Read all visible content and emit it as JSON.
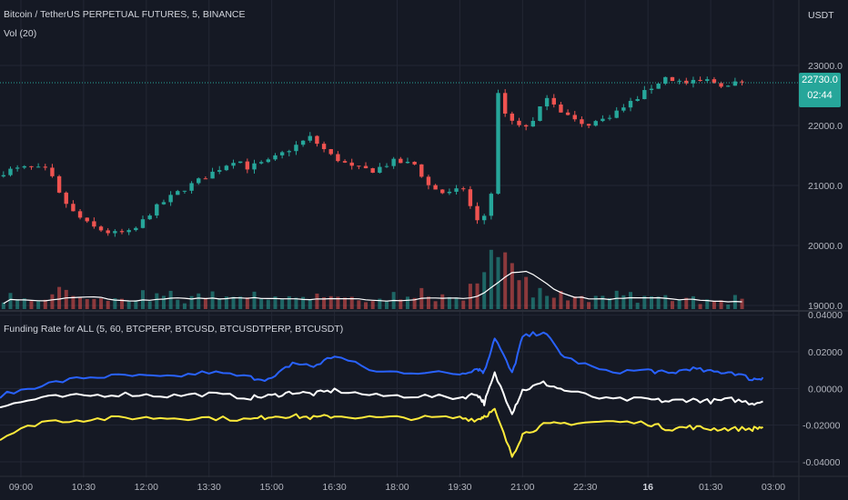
{
  "main_pane": {
    "title": "Bitcoin / TetherUS PERPETUAL FUTURES, 5, BINANCE",
    "volume_label": "Vol (20)",
    "currency": "USDT",
    "price_label": "22730.0",
    "countdown": "02:44",
    "y_ticks": [
      "23000.0",
      "22000.0",
      "21000.0",
      "20000.0",
      "19000.0"
    ]
  },
  "indicator_pane": {
    "title": "Funding Rate for ALL (5, 60, BTCPERP, BTCUSD, BTCUSDTPERP, BTCUSDT)",
    "y_ticks": [
      "0.04000",
      "0.02000",
      "0.00000",
      "-0.02000",
      "-0.04000"
    ]
  },
  "x_ticks": [
    "09:00",
    "10:30",
    "12:00",
    "13:30",
    "15:00",
    "16:30",
    "18:00",
    "19:30",
    "21:00",
    "22:30",
    "16",
    "01:30",
    "03:00"
  ],
  "colors": {
    "background": "#151924",
    "up": "#26a69a",
    "down": "#ef5350",
    "grid": "#232734",
    "blue": "#2962ff",
    "white": "#ffffff",
    "yellow": "#ffeb3b"
  },
  "chart_data": [
    {
      "type": "candlestick",
      "title": "Bitcoin / TetherUS PERPETUAL FUTURES, 5, BINANCE",
      "x_range": [
        "08:30",
        "03:00"
      ],
      "ylim": [
        18700,
        23200
      ],
      "close_path": [
        [
          "08:30",
          21150
        ],
        [
          "08:45",
          21250
        ],
        [
          "09:15",
          21300
        ],
        [
          "09:45",
          21250
        ],
        [
          "10:00",
          20850
        ],
        [
          "10:20",
          20550
        ],
        [
          "10:45",
          20320
        ],
        [
          "11:15",
          20200
        ],
        [
          "11:45",
          20220
        ],
        [
          "12:15",
          20600
        ],
        [
          "12:45",
          20850
        ],
        [
          "13:15",
          21050
        ],
        [
          "13:45",
          21250
        ],
        [
          "14:15",
          21450
        ],
        [
          "14:30",
          21300
        ],
        [
          "15:00",
          21400
        ],
        [
          "15:30",
          21600
        ],
        [
          "16:00",
          21800
        ],
        [
          "16:30",
          21500
        ],
        [
          "17:00",
          21300
        ],
        [
          "17:30",
          21250
        ],
        [
          "18:00",
          21400
        ],
        [
          "18:30",
          21350
        ],
        [
          "18:50",
          21000
        ],
        [
          "19:15",
          20850
        ],
        [
          "19:40",
          20950
        ],
        [
          "19:55",
          20500
        ],
        [
          "20:05",
          20300
        ],
        [
          "20:20",
          20900
        ],
        [
          "20:30",
          22500
        ],
        [
          "20:45",
          22100
        ],
        [
          "21:15",
          21950
        ],
        [
          "21:40",
          22500
        ],
        [
          "22:00",
          22250
        ],
        [
          "22:30",
          22000
        ],
        [
          "23:00",
          22100
        ],
        [
          "23:30",
          22300
        ],
        [
          "00:00",
          22550
        ],
        [
          "00:30",
          22800
        ],
        [
          "01:00",
          22700
        ],
        [
          "01:30",
          22750
        ],
        [
          "02:00",
          22650
        ],
        [
          "02:15",
          22730
        ]
      ],
      "last_price": 22730.0
    },
    {
      "type": "bar",
      "title": "Vol (20)",
      "series": "volume with moving average",
      "note_peak_times": [
        "20:05",
        "20:35",
        "21:00"
      ]
    },
    {
      "type": "line",
      "title": "Funding Rate for ALL (5, 60, BTCPERP, BTCUSD, BTCUSDTPERP, BTCUSDT)",
      "ylim": [
        -0.045,
        0.04
      ],
      "x": [
        "08:30",
        "09:30",
        "10:30",
        "11:30",
        "12:30",
        "13:30",
        "14:30",
        "15:00",
        "15:30",
        "16:00",
        "16:30",
        "17:30",
        "18:30",
        "19:30",
        "19:55",
        "20:05",
        "20:20",
        "20:45",
        "21:00",
        "21:30",
        "22:00",
        "23:00",
        "00:00",
        "00:30",
        "01:00",
        "01:30",
        "02:00",
        "02:30",
        "02:45"
      ],
      "series": [
        {
          "color": "blue",
          "values": [
            -0.004,
            0.002,
            0.006,
            0.007,
            0.006,
            0.009,
            0.006,
            0.005,
            0.014,
            0.012,
            0.018,
            0.009,
            0.009,
            0.008,
            0.011,
            0.009,
            0.028,
            0.008,
            0.028,
            0.031,
            0.017,
            0.009,
            0.01,
            0.008,
            0.011,
            0.009,
            0.009,
            0.005,
            0.006
          ]
        },
        {
          "color": "white",
          "values": [
            -0.01,
            -0.005,
            -0.004,
            -0.003,
            -0.004,
            -0.003,
            -0.005,
            -0.004,
            -0.002,
            -0.003,
            -0.001,
            -0.004,
            -0.004,
            -0.005,
            -0.003,
            -0.008,
            0.008,
            -0.013,
            -0.001,
            0.003,
            -0.001,
            -0.006,
            -0.006,
            -0.007,
            -0.006,
            -0.007,
            -0.006,
            -0.008,
            -0.007
          ]
        },
        {
          "color": "yellow",
          "values": [
            -0.027,
            -0.018,
            -0.017,
            -0.016,
            -0.016,
            -0.016,
            -0.017,
            -0.015,
            -0.015,
            -0.016,
            -0.015,
            -0.016,
            -0.016,
            -0.016,
            -0.017,
            -0.015,
            -0.012,
            -0.037,
            -0.025,
            -0.02,
            -0.019,
            -0.018,
            -0.019,
            -0.022,
            -0.021,
            -0.022,
            -0.022,
            -0.022,
            -0.021
          ]
        }
      ]
    }
  ]
}
